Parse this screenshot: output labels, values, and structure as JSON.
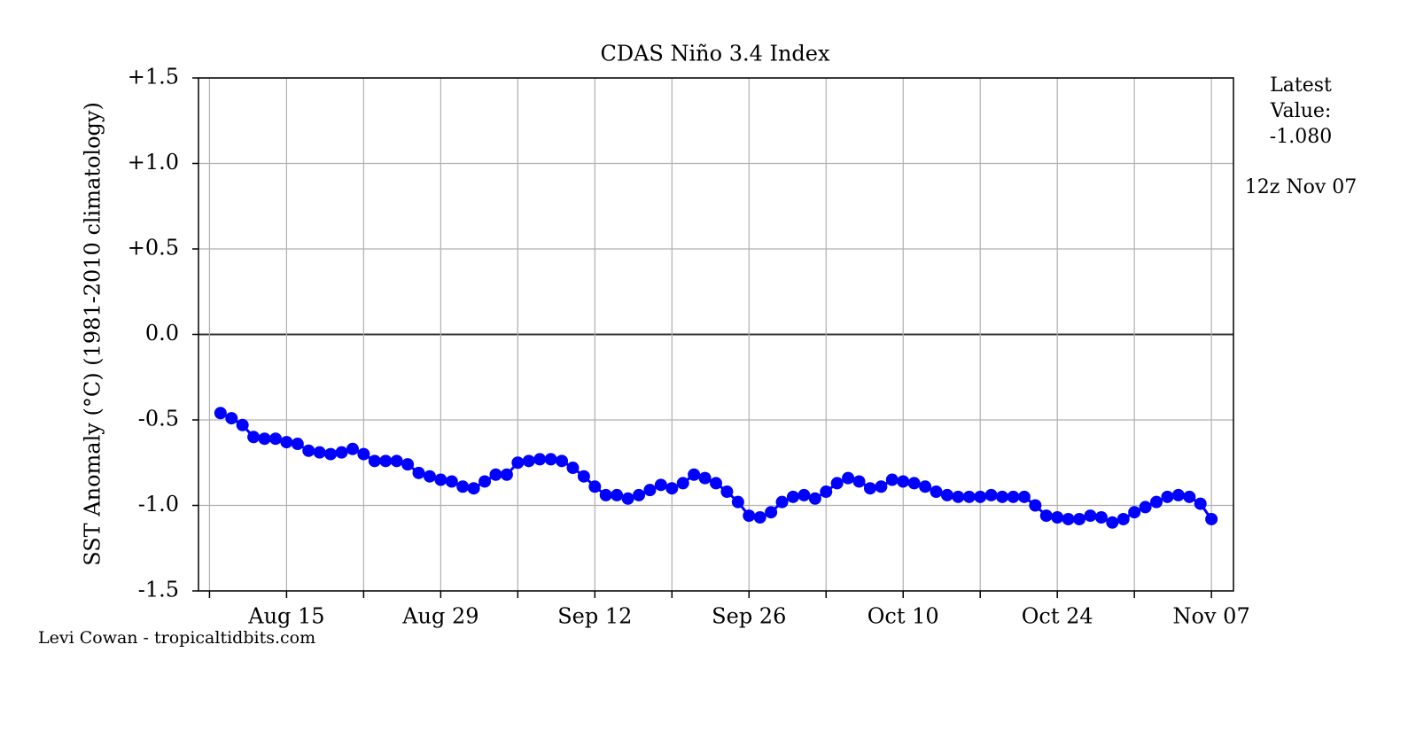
{
  "chart_data": {
    "type": "line",
    "title": "CDAS Niño 3.4 Index",
    "y_label": "SST Anomaly (°C) (1981-2010 climatology)",
    "annotations": [
      "Latest",
      "Value:",
      "-1.080",
      "12z Nov 07"
    ],
    "credit": "Levi Cowan - tropicaltidbits.com",
    "x": [
      "Aug 09",
      "Aug 10",
      "Aug 11",
      "Aug 12",
      "Aug 13",
      "Aug 14",
      "Aug 15",
      "Aug 16",
      "Aug 17",
      "Aug 18",
      "Aug 19",
      "Aug 20",
      "Aug 21",
      "Aug 22",
      "Aug 23",
      "Aug 24",
      "Aug 25",
      "Aug 26",
      "Aug 27",
      "Aug 28",
      "Aug 29",
      "Aug 30",
      "Aug 31",
      "Sep 01",
      "Sep 02",
      "Sep 03",
      "Sep 04",
      "Sep 05",
      "Sep 06",
      "Sep 07",
      "Sep 08",
      "Sep 09",
      "Sep 10",
      "Sep 11",
      "Sep 12",
      "Sep 13",
      "Sep 14",
      "Sep 15",
      "Sep 16",
      "Sep 17",
      "Sep 18",
      "Sep 19",
      "Sep 20",
      "Sep 21",
      "Sep 22",
      "Sep 23",
      "Sep 24",
      "Sep 25",
      "Sep 26",
      "Sep 27",
      "Sep 28",
      "Sep 29",
      "Sep 30",
      "Oct 01",
      "Oct 02",
      "Oct 03",
      "Oct 04",
      "Oct 05",
      "Oct 06",
      "Oct 07",
      "Oct 08",
      "Oct 09",
      "Oct 10",
      "Oct 11",
      "Oct 12",
      "Oct 13",
      "Oct 14",
      "Oct 15",
      "Oct 16",
      "Oct 17",
      "Oct 18",
      "Oct 19",
      "Oct 20",
      "Oct 21",
      "Oct 22",
      "Oct 23",
      "Oct 24",
      "Oct 25",
      "Oct 26",
      "Oct 27",
      "Oct 28",
      "Oct 29",
      "Oct 30",
      "Oct 31",
      "Nov 01",
      "Nov 02",
      "Nov 03",
      "Nov 04",
      "Nov 05",
      "Nov 06",
      "Nov 07"
    ],
    "series": [
      {
        "name": "Niño 3.4",
        "color": "#0000ff",
        "values": [
          -0.46,
          -0.49,
          -0.53,
          -0.6,
          -0.61,
          -0.61,
          -0.63,
          -0.64,
          -0.68,
          -0.69,
          -0.7,
          -0.69,
          -0.67,
          -0.7,
          -0.74,
          -0.74,
          -0.74,
          -0.76,
          -0.81,
          -0.83,
          -0.85,
          -0.86,
          -0.89,
          -0.9,
          -0.86,
          -0.82,
          -0.82,
          -0.75,
          -0.74,
          -0.73,
          -0.73,
          -0.74,
          -0.78,
          -0.83,
          -0.89,
          -0.94,
          -0.94,
          -0.96,
          -0.94,
          -0.91,
          -0.88,
          -0.9,
          -0.87,
          -0.82,
          -0.84,
          -0.87,
          -0.92,
          -0.98,
          -1.06,
          -1.07,
          -1.04,
          -0.98,
          -0.95,
          -0.94,
          -0.96,
          -0.92,
          -0.87,
          -0.84,
          -0.86,
          -0.9,
          -0.89,
          -0.85,
          -0.86,
          -0.87,
          -0.89,
          -0.92,
          -0.94,
          -0.95,
          -0.95,
          -0.95,
          -0.94,
          -0.95,
          -0.95,
          -0.95,
          -1.0,
          -1.06,
          -1.07,
          -1.08,
          -1.08,
          -1.06,
          -1.07,
          -1.1,
          -1.08,
          -1.04,
          -1.01,
          -0.98,
          -0.95,
          -0.94,
          -0.95,
          -0.99,
          -1.08
        ]
      }
    ],
    "xlim": [
      "Aug 07",
      "Nov 09"
    ],
    "xticks": [
      {
        "value": "Aug 08",
        "label": null
      },
      "Aug 15",
      {
        "value": "Aug 22",
        "label": null
      },
      "Aug 29",
      {
        "value": "Sep 05",
        "label": null
      },
      "Sep 12",
      {
        "value": "Sep 19",
        "label": null
      },
      "Sep 26",
      {
        "value": "Oct 03",
        "label": null
      },
      "Oct 10",
      {
        "value": "Oct 17",
        "label": null
      },
      "Oct 24",
      {
        "value": "Oct 31",
        "label": null
      },
      "Nov 07"
    ],
    "ylim": [
      -1.5,
      1.5
    ],
    "yticks": [
      {
        "value": -1.5,
        "label": "-1.5"
      },
      {
        "value": -1,
        "label": "-1.0"
      },
      -0.5,
      {
        "value": 0,
        "label": "0.0"
      },
      {
        "value": 0.5,
        "label": "+0.5"
      },
      {
        "value": 1,
        "label": "+1.0"
      },
      {
        "value": 1.5,
        "label": "+1.5"
      }
    ],
    "grid": true
  }
}
